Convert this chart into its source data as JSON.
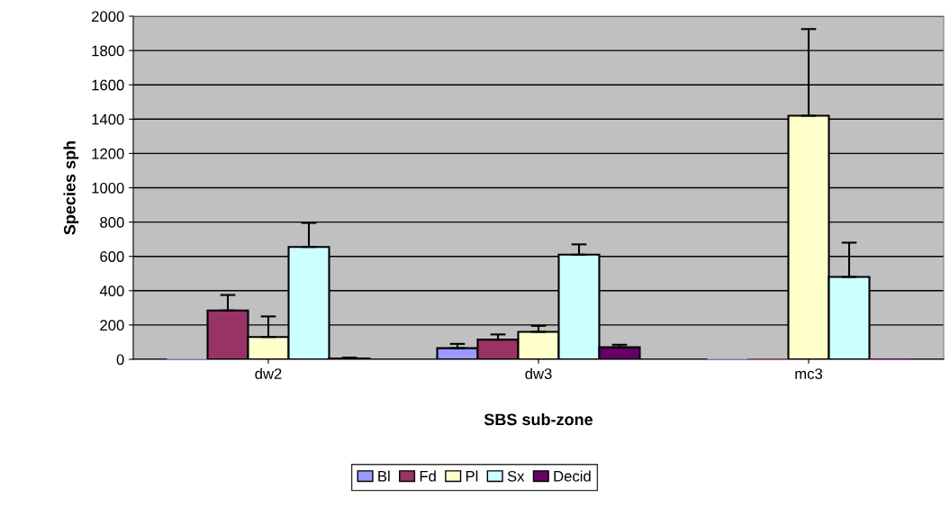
{
  "chart_data": {
    "type": "bar",
    "xlabel": "SBS sub-zone",
    "ylabel": "Species sph",
    "categories": [
      "dw2",
      "dw3",
      "mc3"
    ],
    "series": [
      {
        "name": "Bl",
        "color": "#9999ff",
        "values": [
          0,
          65,
          0
        ],
        "errors": [
          null,
          [
            65,
            90
          ],
          null
        ]
      },
      {
        "name": "Fd",
        "color": "#993366",
        "values": [
          285,
          115,
          0
        ],
        "errors": [
          [
            285,
            375
          ],
          [
            115,
            145
          ],
          null
        ]
      },
      {
        "name": "Pl",
        "color": "#ffffcc",
        "values": [
          130,
          160,
          1420
        ],
        "errors": [
          [
            130,
            250
          ],
          [
            160,
            195
          ],
          [
            1420,
            1925
          ]
        ]
      },
      {
        "name": "Sx",
        "color": "#ccffff",
        "values": [
          655,
          610,
          480
        ],
        "errors": [
          [
            655,
            795
          ],
          [
            610,
            670
          ],
          [
            480,
            680
          ]
        ]
      },
      {
        "name": "Decid",
        "color": "#660066",
        "values": [
          5,
          70,
          0
        ],
        "errors": [
          [
            5,
            10
          ],
          [
            70,
            85
          ],
          null
        ]
      }
    ],
    "ylim": [
      0,
      2000
    ],
    "yticks": [
      0,
      200,
      400,
      600,
      800,
      1000,
      1200,
      1400,
      1600,
      1800,
      2000
    ],
    "grid": "y",
    "legend": "bottom"
  }
}
